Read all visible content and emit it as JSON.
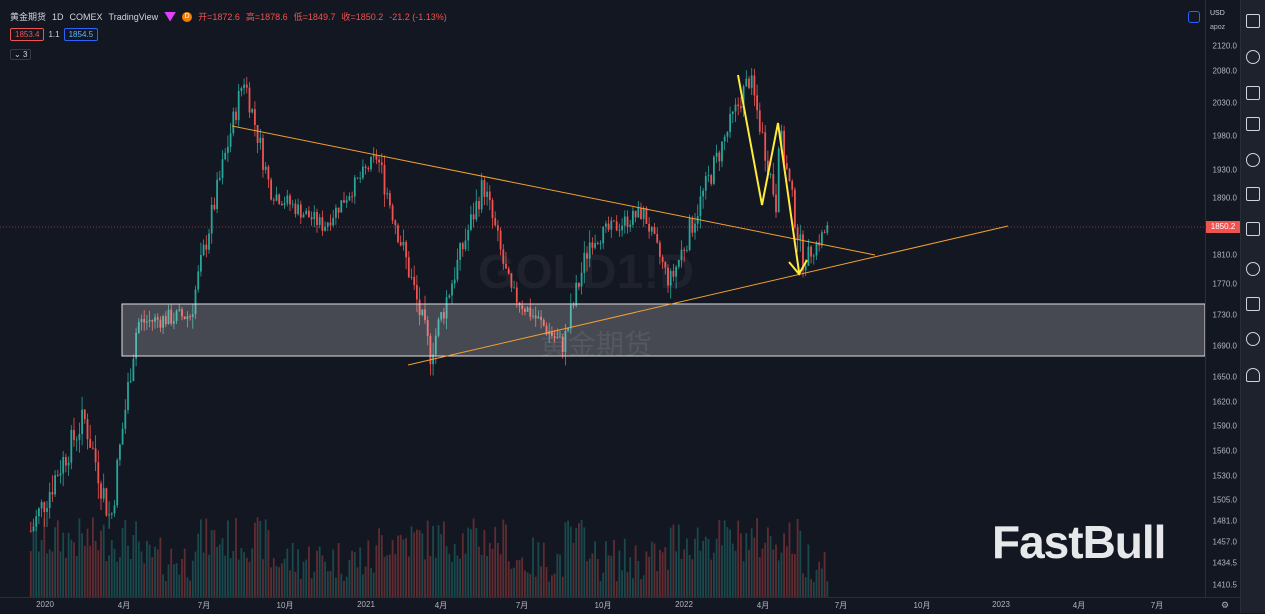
{
  "legend": {
    "symbol": "黄金期货",
    "interval": "1D",
    "exchange": "COMEX",
    "source": "TradingView",
    "open_label": "开=1872.6",
    "high_label": "高=1878.6",
    "low_label": "低=1849.7",
    "close_label": "收=1850.2",
    "change_label": "-21.2 (-1.13%)",
    "badge": "D"
  },
  "trade": {
    "sell": "1853.4",
    "spread": "1.1",
    "buy": "1854.5"
  },
  "indicators_toggle": "3",
  "axis": {
    "currency": "USD",
    "scale_label": "apoz",
    "current_price": "1850.2"
  },
  "watermark": {
    "brand": "FastBull",
    "symbol_ticker": "GOLD1!D",
    "symbol_cn": "黄金期货"
  },
  "colors": {
    "up": "#26a69a",
    "down": "#ef5350",
    "trendline": "#f0a030",
    "arrow": "#ffeb3b"
  },
  "chart_data": {
    "type": "candlestick",
    "y_ticks": [
      2120.0,
      2080.0,
      2030.0,
      1980.0,
      1930.0,
      1890.0,
      1850.0,
      1810.0,
      1770.0,
      1730.0,
      1690.0,
      1650.0,
      1620.0,
      1590.0,
      1560.0,
      1530.0,
      1505.0,
      1481.0,
      1457.0,
      1434.5,
      1410.5
    ],
    "x_ticks": [
      "2020",
      "4月",
      "7月",
      "10月",
      "2021",
      "4月",
      "7月",
      "10月",
      "2022",
      "4月",
      "7月",
      "10月",
      "2023",
      "4月",
      "7月"
    ],
    "series_key_points": [
      {
        "date": "2019-12",
        "price": 1470
      },
      {
        "date": "2020-02",
        "price": 1600
      },
      {
        "date": "2020-03",
        "price": 1480
      },
      {
        "date": "2020-04",
        "price": 1720
      },
      {
        "date": "2020-06",
        "price": 1730
      },
      {
        "date": "2020-08",
        "price": 2070
      },
      {
        "date": "2020-09",
        "price": 1900
      },
      {
        "date": "2020-11",
        "price": 1850
      },
      {
        "date": "2021-01",
        "price": 1950
      },
      {
        "date": "2021-03",
        "price": 1680
      },
      {
        "date": "2021-05",
        "price": 1910
      },
      {
        "date": "2021-06",
        "price": 1760
      },
      {
        "date": "2021-08",
        "price": 1690
      },
      {
        "date": "2021-09",
        "price": 1830
      },
      {
        "date": "2021-11",
        "price": 1870
      },
      {
        "date": "2021-12",
        "price": 1770
      },
      {
        "date": "2022-03",
        "price": 2070
      },
      {
        "date": "2022-04",
        "price": 1880
      },
      {
        "date": "2022-04-18",
        "price": 1990
      },
      {
        "date": "2022-05",
        "price": 1800
      },
      {
        "date": "2022-06",
        "price": 1850.2
      }
    ],
    "support_zone": [
      1675,
      1745
    ],
    "current_price": 1850.2,
    "grid": false
  }
}
